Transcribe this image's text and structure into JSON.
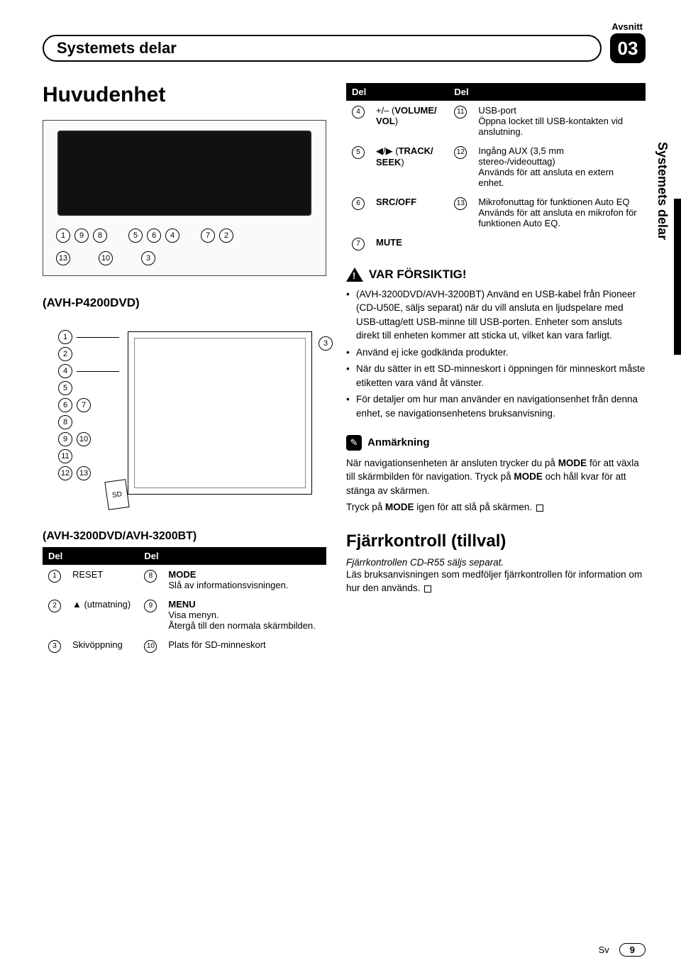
{
  "header": {
    "section_label": "Avsnitt",
    "title": "Systemets delar",
    "chapter": "03"
  },
  "side_label": "Systemets delar",
  "left": {
    "main_heading": "Huvudenhet",
    "fig1_callouts_row1": [
      "1",
      "9",
      "8",
      "5",
      "6",
      "4",
      "7",
      "2"
    ],
    "fig1_callouts_row2": [
      "13",
      "10",
      "3"
    ],
    "sub_label": "(AVH-P4200DVD)",
    "sub_callouts": [
      "1",
      "2",
      "3",
      "4",
      "5",
      "6",
      "7",
      "8",
      "9",
      "10",
      "11",
      "12",
      "13"
    ],
    "sd": "SD",
    "model_line": "(AVH-3200DVD/AVH-3200BT)",
    "table": {
      "h1": "Del",
      "h2": "Del",
      "rows": [
        {
          "n1": "1",
          "t1": "RESET",
          "n2": "8",
          "t2": "<span class='bold'>MODE</span><br>Slå av informationsvisningen."
        },
        {
          "n1": "2",
          "t1": "▲ (utmatning)",
          "n2": "9",
          "t2": "<span class='bold'>MENU</span><br>Visa menyn.<br>Återgå till den normala skärmbilden."
        },
        {
          "n1": "3",
          "t1": "Skivöppning",
          "n2": "10",
          "t2": "Plats för SD-minneskort"
        }
      ]
    }
  },
  "right": {
    "table": {
      "h1": "Del",
      "h2": "Del",
      "rows": [
        {
          "n1": "4",
          "t1": "+/– (<span class='bold'>VOLUME/ VOL</span>)",
          "n2": "11",
          "t2": "USB-port<br>Öppna locket till USB-kontakten vid anslutning."
        },
        {
          "n1": "5",
          "t1": "◀/▶ (<span class='bold'>TRACK/ SEEK</span>)",
          "n2": "12",
          "t2": "Ingång AUX (3,5 mm stereo-/videouttag)<br>Används för att ansluta en extern enhet."
        },
        {
          "n1": "6",
          "t1": "<span class='bold'>SRC/OFF</span>",
          "n2": "13",
          "t2": "Mikrofonuttag för funktionen Auto EQ<br>Används för att ansluta en mikrofon för funktionen Auto EQ."
        },
        {
          "n1": "7",
          "t1": "<span class='bold'>MUTE</span>",
          "n2": "",
          "t2": ""
        }
      ]
    },
    "caution_title": "VAR FÖRSIKTIG!",
    "bullets": [
      "(AVH-3200DVD/AVH-3200BT) Använd en USB-kabel från Pioneer (CD-U50E, säljs separat) när du vill ansluta en ljudspelare med USB-uttag/ett USB-minne till USB-porten. Enheter som ansluts direkt till enheten kommer att sticka ut, vilket kan vara farligt.",
      "Använd ej icke godkända produkter.",
      "När du sätter in ett SD-minneskort i öppningen för minneskort måste etiketten vara vänd åt vänster.",
      "För detaljer om hur man använder en navigationsenhet från denna enhet, se navigationsenhetens bruksanvisning."
    ],
    "note_title": "Anmärkning",
    "note_body": "När navigationsenheten är ansluten trycker du på <span class='bold'>MODE</span> för att växla till skärmbilden för navigation. Tryck på <span class='bold'>MODE</span> och håll kvar för att stänga av skärmen.",
    "note_body2": "Tryck på <span class='bold'>MODE</span> igen för att slå på skärmen.",
    "h2": "Fjärrkontroll (tillval)",
    "ital": "Fjärrkontrollen CD-R55 säljs separat.",
    "body3": "Läs bruksanvisningen som medföljer fjärrkontrollen för information om hur den används."
  },
  "footer": {
    "lang": "Sv",
    "page": "9"
  }
}
